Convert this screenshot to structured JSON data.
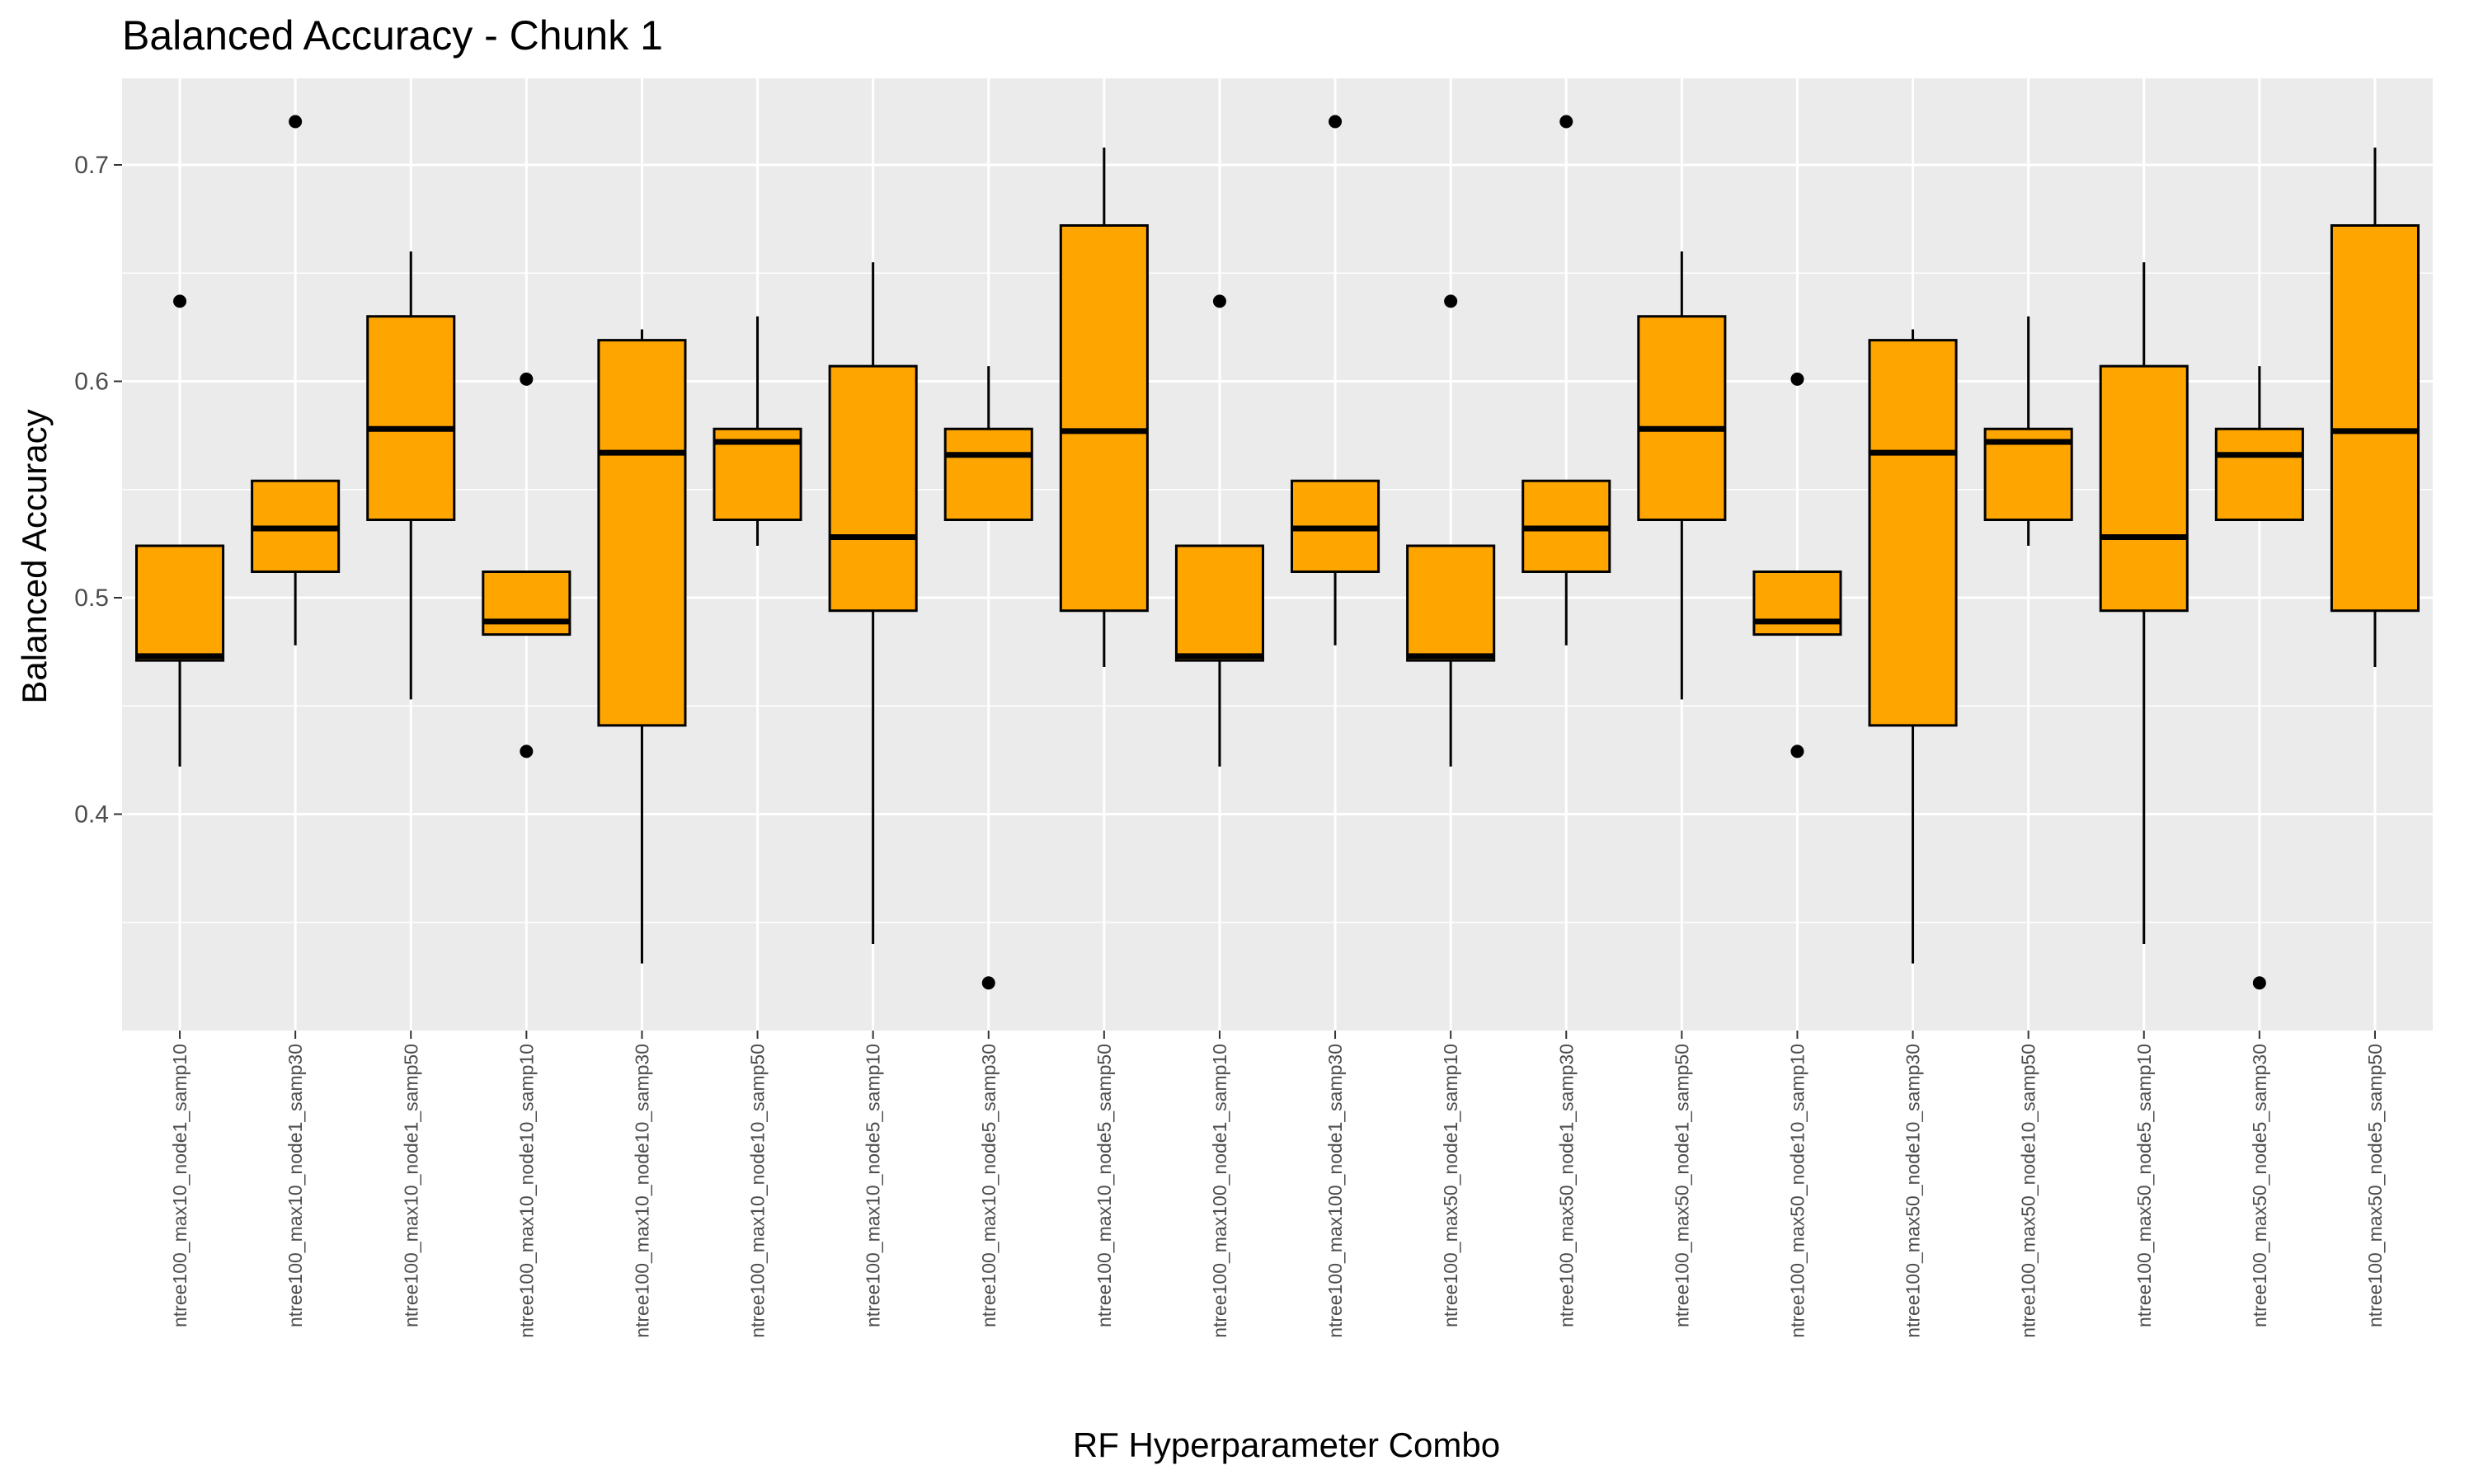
{
  "chart_data": {
    "type": "boxplot",
    "title": "Balanced Accuracy - Chunk 1",
    "xlabel": "RF Hyperparameter Combo",
    "ylabel": "Balanced Accuracy",
    "ylim": [
      0.3,
      0.74
    ],
    "yticks": [
      0.4,
      0.5,
      0.6,
      0.7
    ],
    "ytick_labels": [
      "0.4",
      "0.5",
      "0.6",
      "0.7"
    ],
    "grid": true,
    "colors": {
      "panel": "#ebebeb",
      "grid": "#ffffff",
      "box_fill": "#ffa500",
      "line": "#000000",
      "axis_text": "#4d4d4d"
    },
    "categories": [
      "ntree100_max10_node1_samp10",
      "ntree100_max10_node1_samp30",
      "ntree100_max10_node1_samp50",
      "ntree100_max10_node10_samp10",
      "ntree100_max10_node10_samp30",
      "ntree100_max10_node10_samp50",
      "ntree100_max10_node5_samp10",
      "ntree100_max10_node5_samp30",
      "ntree100_max10_node5_samp50",
      "ntree100_max100_node1_samp10",
      "ntree100_max100_node1_samp30",
      "ntree100_max50_node1_samp10",
      "ntree100_max50_node1_samp30",
      "ntree100_max50_node1_samp50",
      "ntree100_max50_node10_samp10",
      "ntree100_max50_node10_samp30",
      "ntree100_max50_node10_samp50",
      "ntree100_max50_node5_samp10",
      "ntree100_max50_node5_samp30",
      "ntree100_max50_node5_samp50"
    ],
    "boxes": [
      {
        "wlo": 0.422,
        "q1": 0.471,
        "med": 0.473,
        "q3": 0.524,
        "whi": 0.524,
        "outliers": [
          0.637
        ]
      },
      {
        "wlo": 0.478,
        "q1": 0.512,
        "med": 0.532,
        "q3": 0.554,
        "whi": 0.554,
        "outliers": [
          0.72
        ]
      },
      {
        "wlo": 0.453,
        "q1": 0.536,
        "med": 0.578,
        "q3": 0.63,
        "whi": 0.66,
        "outliers": []
      },
      {
        "wlo": 0.483,
        "q1": 0.483,
        "med": 0.489,
        "q3": 0.512,
        "whi": 0.512,
        "outliers": [
          0.601,
          0.429
        ]
      },
      {
        "wlo": 0.331,
        "q1": 0.441,
        "med": 0.567,
        "q3": 0.619,
        "whi": 0.624,
        "outliers": []
      },
      {
        "wlo": 0.524,
        "q1": 0.536,
        "med": 0.572,
        "q3": 0.578,
        "whi": 0.63,
        "outliers": []
      },
      {
        "wlo": 0.34,
        "q1": 0.494,
        "med": 0.528,
        "q3": 0.607,
        "whi": 0.655,
        "outliers": []
      },
      {
        "wlo": 0.536,
        "q1": 0.536,
        "med": 0.566,
        "q3": 0.578,
        "whi": 0.607,
        "outliers": [
          0.322
        ]
      },
      {
        "wlo": 0.468,
        "q1": 0.494,
        "med": 0.577,
        "q3": 0.672,
        "whi": 0.708,
        "outliers": []
      },
      {
        "wlo": 0.422,
        "q1": 0.471,
        "med": 0.473,
        "q3": 0.524,
        "whi": 0.524,
        "outliers": [
          0.637
        ]
      },
      {
        "wlo": 0.478,
        "q1": 0.512,
        "med": 0.532,
        "q3": 0.554,
        "whi": 0.554,
        "outliers": [
          0.72
        ]
      },
      {
        "wlo": 0.422,
        "q1": 0.471,
        "med": 0.473,
        "q3": 0.524,
        "whi": 0.524,
        "outliers": [
          0.637
        ]
      },
      {
        "wlo": 0.478,
        "q1": 0.512,
        "med": 0.532,
        "q3": 0.554,
        "whi": 0.554,
        "outliers": [
          0.72
        ]
      },
      {
        "wlo": 0.453,
        "q1": 0.536,
        "med": 0.578,
        "q3": 0.63,
        "whi": 0.66,
        "outliers": []
      },
      {
        "wlo": 0.483,
        "q1": 0.483,
        "med": 0.489,
        "q3": 0.512,
        "whi": 0.512,
        "outliers": [
          0.601,
          0.429
        ]
      },
      {
        "wlo": 0.331,
        "q1": 0.441,
        "med": 0.567,
        "q3": 0.619,
        "whi": 0.624,
        "outliers": []
      },
      {
        "wlo": 0.524,
        "q1": 0.536,
        "med": 0.572,
        "q3": 0.578,
        "whi": 0.63,
        "outliers": []
      },
      {
        "wlo": 0.34,
        "q1": 0.494,
        "med": 0.528,
        "q3": 0.607,
        "whi": 0.655,
        "outliers": []
      },
      {
        "wlo": 0.536,
        "q1": 0.536,
        "med": 0.566,
        "q3": 0.578,
        "whi": 0.607,
        "outliers": [
          0.322
        ]
      },
      {
        "wlo": 0.468,
        "q1": 0.494,
        "med": 0.577,
        "q3": 0.672,
        "whi": 0.708,
        "outliers": []
      }
    ]
  }
}
